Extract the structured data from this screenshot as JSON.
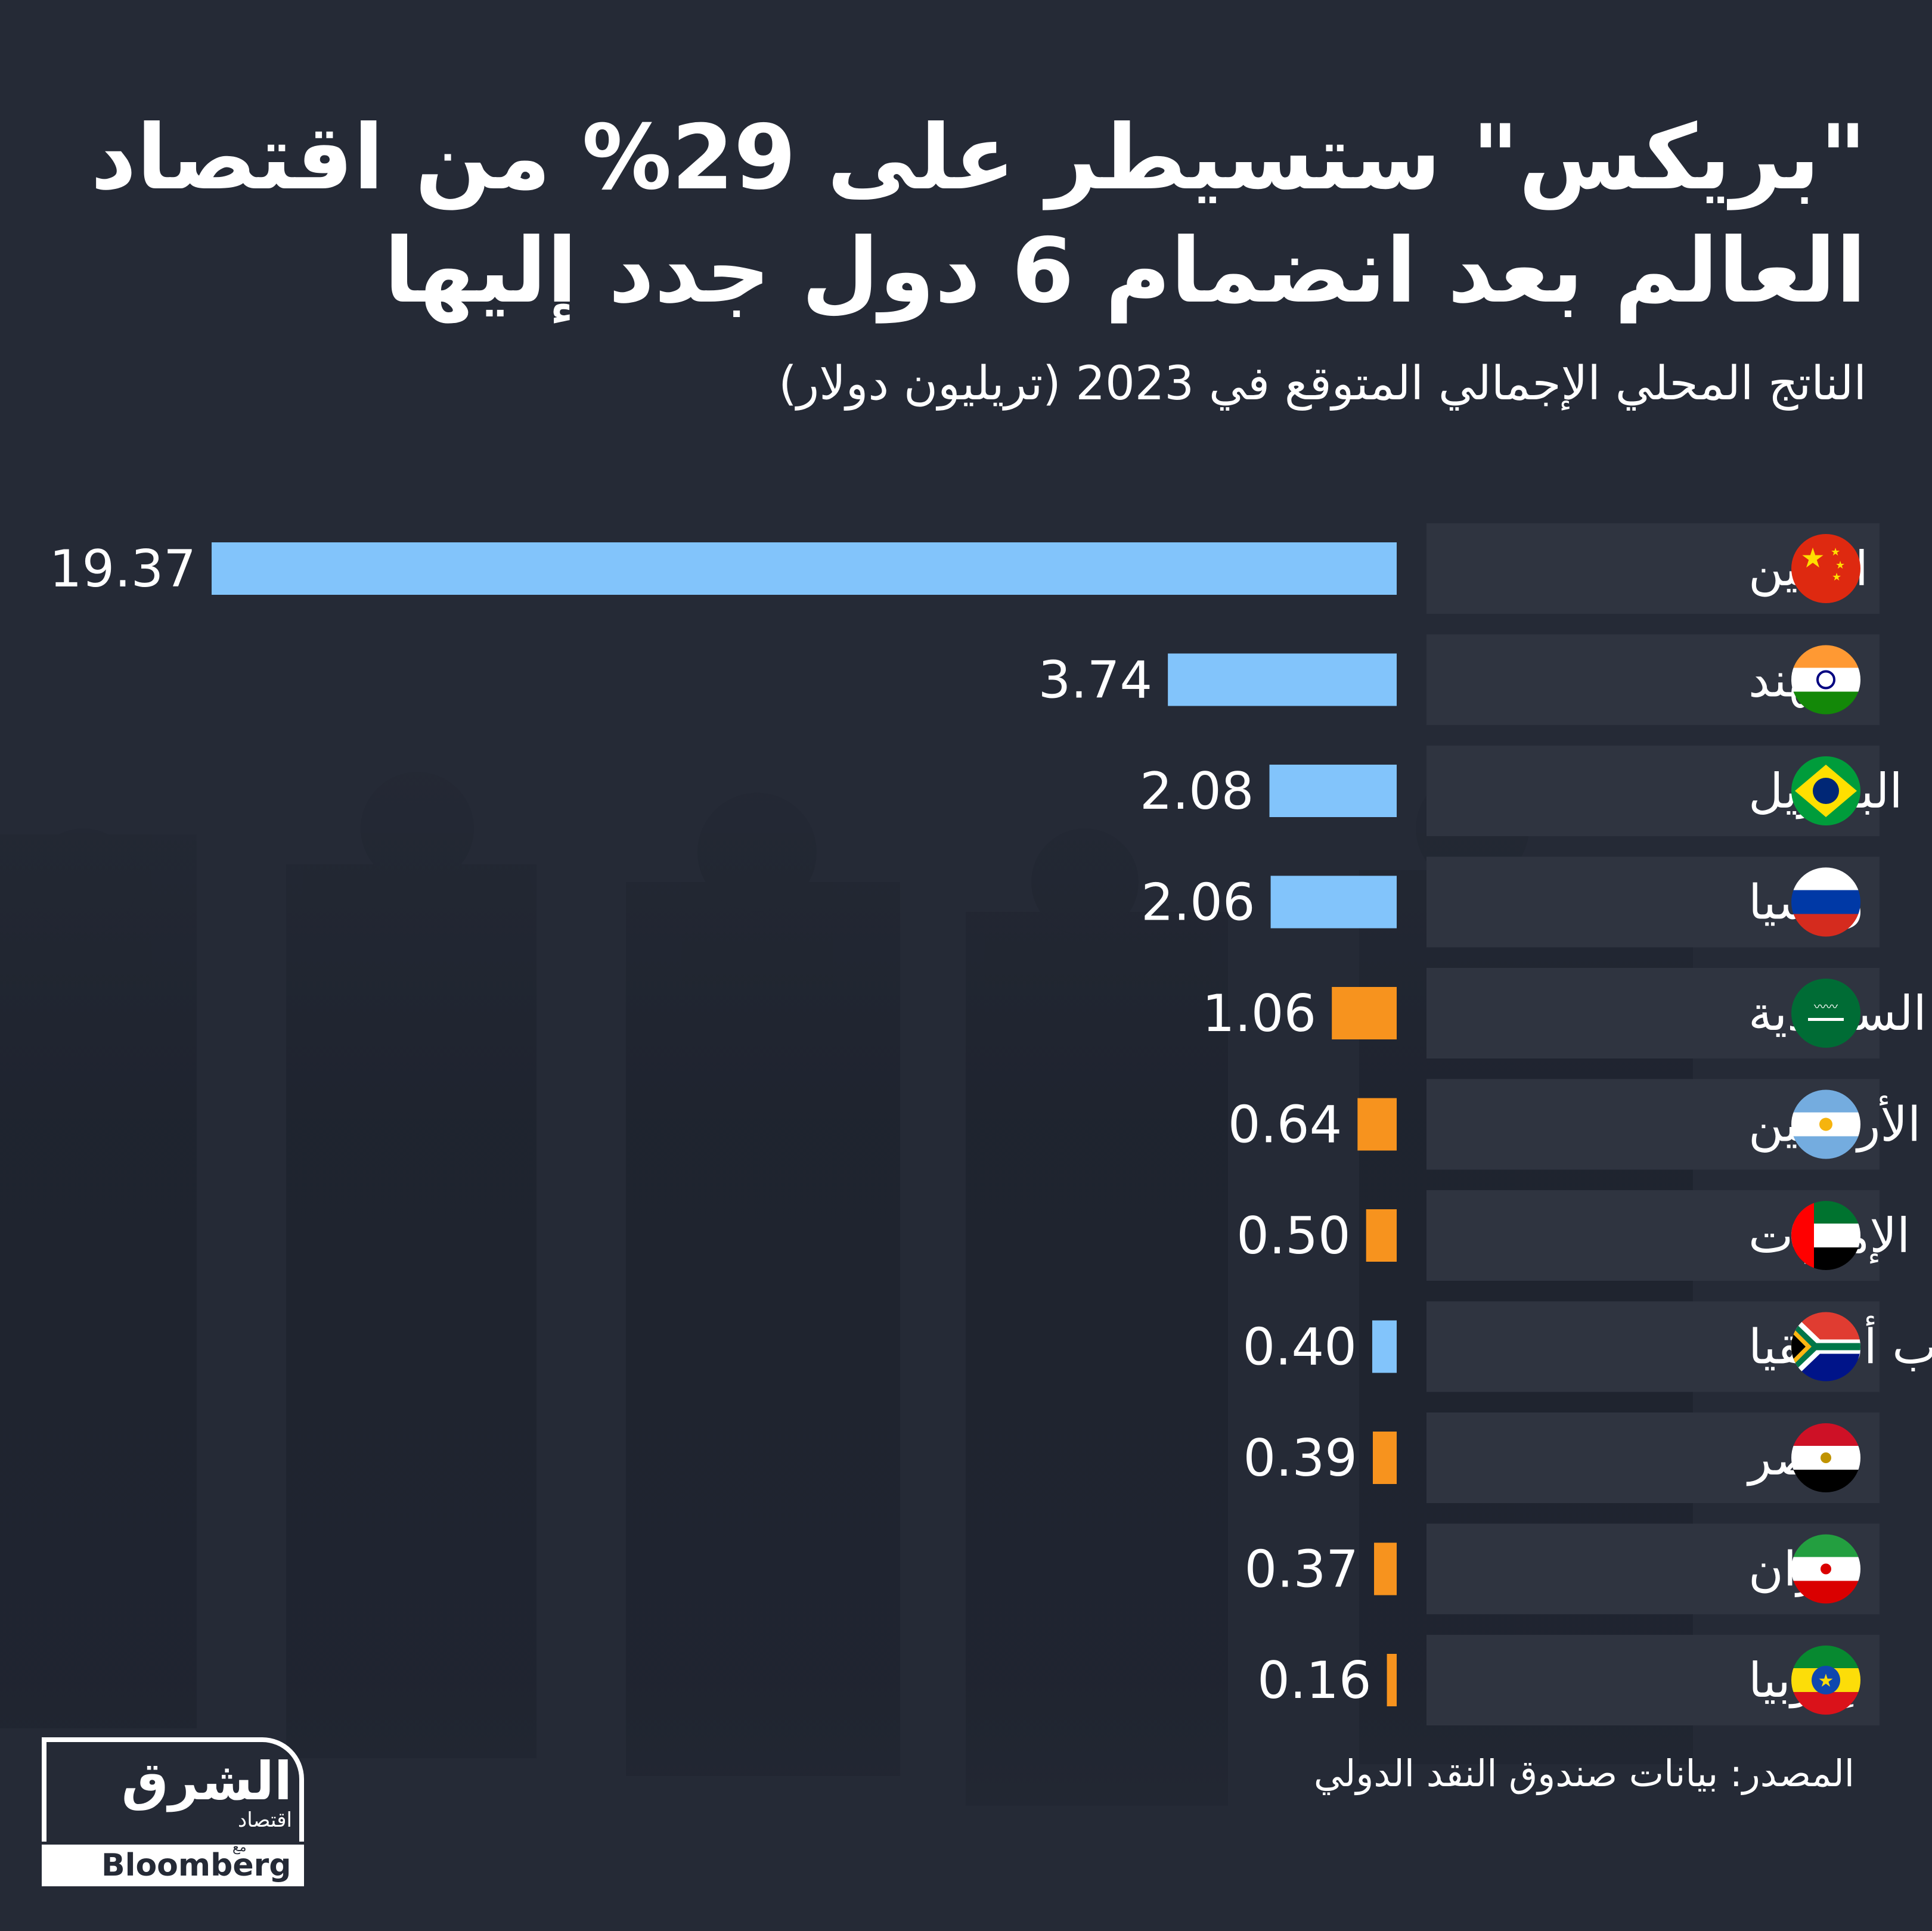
{
  "title_line1": "\"بريكس\" ستسيطر على 29% من اقتصاد",
  "title_line2": "العالم بعد انضمام 6 دول جدد إليها",
  "subtitle": "الناتج المحلي الإجمالي المتوقع في 2023 (تريليون دولار)",
  "source": "المصدر: بيانات صندوق النقد الدولي",
  "logo": {
    "main": "الشرق",
    "sub": "اقتصاد",
    "with": "مع",
    "partner": "Bloomberg"
  },
  "colors": {
    "background": "#252a36",
    "existing_member": "#82c4fb",
    "new_member": "#f7931e",
    "row_band": "#2f3440"
  },
  "chart_data": {
    "type": "bar",
    "orientation": "horizontal",
    "categories": [
      "الصين",
      "الهند",
      "البرازيل",
      "روسيا",
      "السعودية",
      "الأرجنتين",
      "الإمارات",
      "جنوب أفريقيا",
      "مصر",
      "إيران",
      "إثيوبيا"
    ],
    "values": [
      19.37,
      3.74,
      2.08,
      2.06,
      1.06,
      0.64,
      0.5,
      0.4,
      0.39,
      0.37,
      0.16
    ],
    "value_labels": [
      "19.37",
      "3.74",
      "2.08",
      "2.06",
      "1.06",
      "0.64",
      "0.50",
      "0.40",
      "0.39",
      "0.37",
      "0.16"
    ],
    "member_type": [
      "existing",
      "existing",
      "existing",
      "existing",
      "new",
      "new",
      "new",
      "existing",
      "new",
      "new",
      "new"
    ],
    "flags": [
      "china-flag-icon",
      "india-flag-icon",
      "brazil-flag-icon",
      "russia-flag-icon",
      "saudi-flag-icon",
      "argentina-flag-icon",
      "uae-flag-icon",
      "south-africa-flag-icon",
      "egypt-flag-icon",
      "iran-flag-icon",
      "ethiopia-flag-icon"
    ],
    "xlim": [
      0,
      19.37
    ],
    "grid": false,
    "legend": "none"
  }
}
